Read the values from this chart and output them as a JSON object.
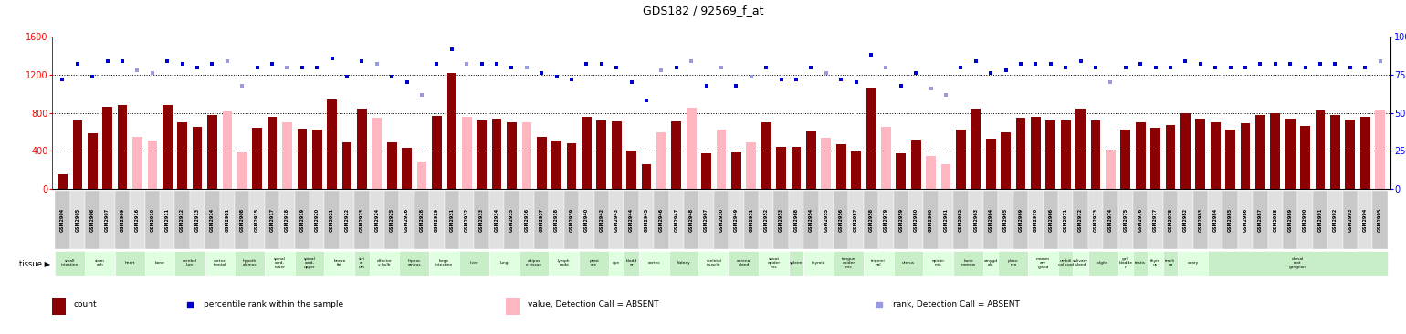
{
  "title": "GDS182 / 92569_f_at",
  "samples": [
    "GSM2904",
    "GSM2905",
    "GSM2906",
    "GSM2907",
    "GSM2909",
    "GSM2916",
    "GSM2910",
    "GSM2911",
    "GSM2912",
    "GSM2913",
    "GSM2914",
    "GSM2981",
    "GSM2908",
    "GSM2915",
    "GSM2917",
    "GSM2918",
    "GSM2919",
    "GSM2920",
    "GSM2921",
    "GSM2922",
    "GSM2923",
    "GSM2924",
    "GSM2925",
    "GSM2926",
    "GSM2928",
    "GSM2929",
    "GSM2931",
    "GSM2932",
    "GSM2933",
    "GSM2934",
    "GSM2935",
    "GSM2936",
    "GSM2937",
    "GSM2938",
    "GSM2939",
    "GSM2940",
    "GSM2942",
    "GSM2943",
    "GSM2944",
    "GSM2945",
    "GSM2946",
    "GSM2947",
    "GSM2948",
    "GSM2967",
    "GSM2930",
    "GSM2949",
    "GSM2951",
    "GSM2952",
    "GSM2953",
    "GSM2968",
    "GSM2954",
    "GSM2955",
    "GSM2956",
    "GSM2957",
    "GSM2958",
    "GSM2979",
    "GSM2959",
    "GSM2980",
    "GSM2960",
    "GSM2961",
    "GSM2962",
    "GSM2963",
    "GSM2964",
    "GSM2965",
    "GSM2969",
    "GSM2970",
    "GSM2966",
    "GSM2971",
    "GSM2972",
    "GSM2973",
    "GSM2974",
    "GSM2975",
    "GSM2976",
    "GSM2977",
    "GSM2978",
    "GSM2982",
    "GSM2983",
    "GSM2984",
    "GSM2985",
    "GSM2986",
    "GSM2987",
    "GSM2988",
    "GSM2989",
    "GSM2990",
    "GSM2991",
    "GSM2992",
    "GSM2993",
    "GSM2994",
    "GSM2995"
  ],
  "tissue_names": [
    "small\nintestine",
    "stom\nach",
    "heart",
    "bone",
    "cerebel\nlum",
    "cortex\nfrontal",
    "hypoth\nalamus",
    "spinal\ncord,\nlower",
    "spinal\ncord,\nupper",
    "brown\nfat",
    "stri\nat\num",
    "olfactor\ny bulb",
    "hippoc\nampus",
    "large\nintestine",
    "liver",
    "lung",
    "adipos\ne tissue",
    "lymph\nnode",
    "prost\nate",
    "eye",
    "bladd\ner",
    "cortex",
    "kidney",
    "skeletal\nmuscle",
    "adrenal\ngland",
    "snout\nepider\nmis",
    "spleen",
    "thyroid",
    "tongue\nepider\nmis",
    "trigemi\nnal",
    "uterus",
    "epider\nmis",
    "bone\nmarrow",
    "amygd\nala",
    "place\nnta",
    "mamm\nary\ngland",
    "umbili\ncal cord",
    "salivary\ngland",
    "digits",
    "gall\nbladde\nr",
    "testis",
    "thym\nus",
    "trach\nea",
    "ovary",
    "dorsal\nroot\nganglion"
  ],
  "tissue_groups": [
    0,
    0,
    1,
    1,
    2,
    2,
    3,
    3,
    4,
    4,
    5,
    5,
    6,
    6,
    7,
    7,
    8,
    8,
    9,
    9,
    10,
    11,
    11,
    12,
    12,
    13,
    13,
    14,
    14,
    15,
    15,
    16,
    16,
    17,
    17,
    18,
    18,
    19,
    20,
    21,
    21,
    22,
    22,
    23,
    23,
    24,
    24,
    25,
    25,
    26,
    27,
    27,
    28,
    28,
    29,
    29,
    30,
    30,
    31,
    31,
    32,
    32,
    33,
    34,
    34,
    35,
    35,
    36,
    37,
    38,
    38,
    39,
    40,
    41,
    42,
    43,
    43,
    44
  ],
  "bar_values": [
    150,
    720,
    580,
    860,
    880,
    550,
    510,
    880,
    700,
    650,
    780,
    810,
    380,
    640,
    760,
    700,
    630,
    620,
    940,
    490,
    840,
    750,
    490,
    430,
    290,
    770,
    1220,
    760,
    720,
    740,
    700,
    700,
    550,
    510,
    480,
    760,
    720,
    710,
    400,
    260,
    590,
    710,
    850,
    370,
    620,
    380,
    490,
    700,
    440,
    440,
    600,
    540,
    470,
    390,
    1060,
    650,
    370,
    520,
    340,
    260,
    620,
    840,
    530,
    590,
    750,
    760,
    720,
    720,
    840,
    720,
    410,
    620,
    700,
    640,
    670,
    800,
    740,
    700,
    620,
    690,
    780,
    800,
    740,
    660,
    820,
    780,
    730,
    760,
    830
  ],
  "bar_absent": [
    false,
    false,
    false,
    false,
    false,
    true,
    true,
    false,
    false,
    false,
    false,
    true,
    true,
    false,
    false,
    true,
    false,
    false,
    false,
    false,
    false,
    true,
    false,
    false,
    true,
    false,
    false,
    true,
    false,
    false,
    false,
    true,
    false,
    false,
    false,
    false,
    false,
    false,
    false,
    false,
    true,
    false,
    true,
    false,
    true,
    false,
    true,
    false,
    false,
    false,
    false,
    true,
    false,
    false,
    false,
    true,
    false,
    false,
    true,
    true,
    false,
    false,
    false,
    false,
    false,
    false,
    false,
    false,
    false,
    false,
    true,
    false,
    false,
    false,
    false,
    false,
    false,
    false,
    false,
    false,
    false,
    false,
    false,
    false,
    false,
    false,
    false,
    false,
    true
  ],
  "rank_values": [
    72,
    82,
    74,
    84,
    84,
    78,
    76,
    84,
    82,
    80,
    82,
    84,
    68,
    80,
    82,
    80,
    80,
    80,
    86,
    74,
    84,
    82,
    74,
    70,
    62,
    82,
    92,
    82,
    82,
    82,
    80,
    80,
    76,
    74,
    72,
    82,
    82,
    80,
    70,
    58,
    78,
    80,
    84,
    68,
    80,
    68,
    74,
    80,
    72,
    72,
    80,
    76,
    72,
    70,
    88,
    80,
    68,
    76,
    66,
    62,
    80,
    84,
    76,
    78,
    82,
    82,
    82,
    80,
    84,
    80,
    70,
    80,
    82,
    80,
    80,
    84,
    82,
    80,
    80,
    80,
    82,
    82,
    82,
    80,
    82,
    82,
    80,
    80,
    84
  ],
  "rank_absent": [
    false,
    false,
    false,
    false,
    false,
    true,
    true,
    false,
    false,
    false,
    false,
    true,
    true,
    false,
    false,
    true,
    false,
    false,
    false,
    false,
    false,
    true,
    false,
    false,
    true,
    false,
    false,
    true,
    false,
    false,
    false,
    true,
    false,
    false,
    false,
    false,
    false,
    false,
    false,
    false,
    true,
    false,
    true,
    false,
    true,
    false,
    true,
    false,
    false,
    false,
    false,
    true,
    false,
    false,
    false,
    true,
    false,
    false,
    true,
    true,
    false,
    false,
    false,
    false,
    false,
    false,
    false,
    false,
    false,
    false,
    true,
    false,
    false,
    false,
    false,
    false,
    false,
    false,
    false,
    false,
    false,
    false,
    false,
    false,
    false,
    false,
    false,
    false,
    true
  ],
  "ylim_left": [
    0,
    1600
  ],
  "ylim_right": [
    0,
    100
  ],
  "yticks_left": [
    0,
    400,
    800,
    1200,
    1600
  ],
  "yticks_right": [
    0,
    25,
    50,
    75,
    100
  ],
  "bar_color_present": "#8B0000",
  "bar_color_absent": "#FFB6C1",
  "dot_color_present": "#0000CC",
  "dot_color_absent": "#9999DD",
  "tissue_color_even": "#C8EEC8",
  "tissue_color_odd": "#E0FFE0",
  "sample_bg_even": "#C8C8C8",
  "sample_bg_odd": "#E0E0E0"
}
